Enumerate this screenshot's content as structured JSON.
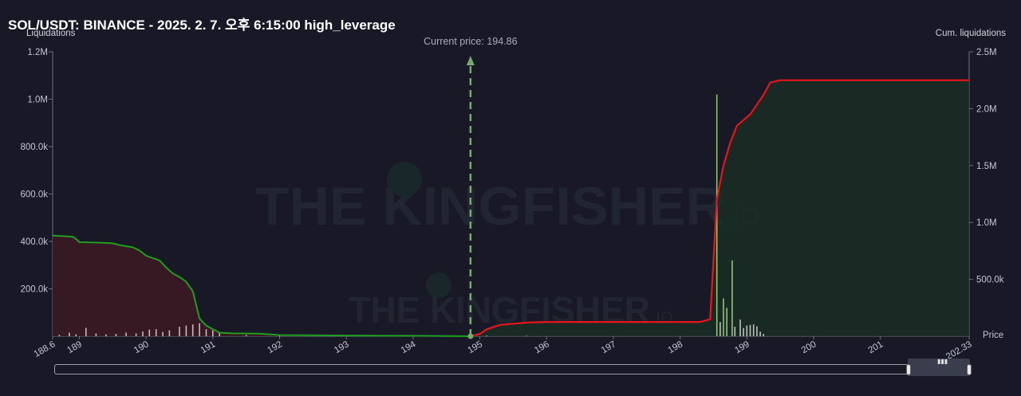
{
  "chart_data": {
    "type": "area",
    "title": "SOL/USDT: BINANCE - 2025. 2. 7. 오후 6:15:00 high_leverage",
    "ylabel_left": "Liquidations",
    "ylabel_right": "Cum. liquidations",
    "xlabel": "Price",
    "xlim": [
      188.6,
      202.33
    ],
    "ylim_left": [
      0,
      1200000
    ],
    "ylim_right": [
      0,
      2500000
    ],
    "x_ticks": [
      "188.6",
      "189",
      "190",
      "191",
      "192",
      "193",
      "194",
      "195",
      "196",
      "197",
      "198",
      "199",
      "200",
      "201",
      "202.33"
    ],
    "y_ticks_left": [
      {
        "value": 200000,
        "label": "200.0k"
      },
      {
        "value": 400000,
        "label": "400.0k"
      },
      {
        "value": 600000,
        "label": "600.0k"
      },
      {
        "value": 800000,
        "label": "800.0k"
      },
      {
        "value": 1000000,
        "label": "1.0M"
      },
      {
        "value": 1200000,
        "label": "1.2M"
      }
    ],
    "y_ticks_right": [
      {
        "value": 500000,
        "label": "500.0k"
      },
      {
        "value": 1000000,
        "label": "1.0M"
      },
      {
        "value": 1500000,
        "label": "1.5M"
      },
      {
        "value": 2000000,
        "label": "2.0M"
      },
      {
        "value": 2500000,
        "label": "2.5M"
      }
    ],
    "current_price": 194.86,
    "current_price_label": "Current price: 194.86",
    "colors": {
      "long_line": "#1f9e1f",
      "long_fill": "#3a1a22",
      "short_line": "#e8141a",
      "short_fill": "#1a3026",
      "bars": "#d9d9d9",
      "bars_highlight": "#a6e07f",
      "current_price": "#7aa86e"
    },
    "series": [
      {
        "name": "long_cum",
        "axis": "left",
        "points": [
          [
            188.6,
            425000
          ],
          [
            188.9,
            420000
          ],
          [
            188.95,
            410000
          ],
          [
            189.0,
            397000
          ],
          [
            189.3,
            395000
          ],
          [
            189.5,
            392000
          ],
          [
            189.6,
            385000
          ],
          [
            189.8,
            375000
          ],
          [
            189.9,
            362000
          ],
          [
            190.0,
            340000
          ],
          [
            190.2,
            320000
          ],
          [
            190.3,
            290000
          ],
          [
            190.4,
            265000
          ],
          [
            190.5,
            250000
          ],
          [
            190.6,
            230000
          ],
          [
            190.7,
            190000
          ],
          [
            190.8,
            75000
          ],
          [
            190.9,
            45000
          ],
          [
            191.0,
            30000
          ],
          [
            191.1,
            15000
          ],
          [
            191.3,
            12000
          ],
          [
            191.7,
            11000
          ],
          [
            192.0,
            5000
          ],
          [
            193.0,
            3000
          ],
          [
            194.0,
            2000
          ],
          [
            194.86,
            0
          ]
        ]
      },
      {
        "name": "short_cum",
        "axis": "right",
        "points": [
          [
            194.86,
            0
          ],
          [
            195.0,
            20000
          ],
          [
            195.1,
            60000
          ],
          [
            195.3,
            100000
          ],
          [
            195.5,
            110000
          ],
          [
            195.7,
            120000
          ],
          [
            196.0,
            125000
          ],
          [
            197.0,
            125000
          ],
          [
            198.0,
            125000
          ],
          [
            198.3,
            125000
          ],
          [
            198.45,
            150000
          ],
          [
            198.55,
            1200000
          ],
          [
            198.65,
            1500000
          ],
          [
            198.75,
            1700000
          ],
          [
            198.85,
            1850000
          ],
          [
            198.95,
            1900000
          ],
          [
            199.05,
            1950000
          ],
          [
            199.25,
            2120000
          ],
          [
            199.35,
            2230000
          ],
          [
            199.5,
            2250000
          ],
          [
            200.0,
            2250000
          ],
          [
            201.0,
            2250000
          ],
          [
            202.33,
            2250000
          ]
        ]
      },
      {
        "name": "liquidations",
        "axis": "left",
        "type": "bar",
        "points": [
          [
            188.7,
            6000
          ],
          [
            188.85,
            15000
          ],
          [
            188.95,
            8000
          ],
          [
            189.1,
            35000
          ],
          [
            189.25,
            12000
          ],
          [
            189.4,
            8000
          ],
          [
            189.55,
            10000
          ],
          [
            189.7,
            15000
          ],
          [
            189.85,
            12000
          ],
          [
            189.95,
            20000
          ],
          [
            190.05,
            28000
          ],
          [
            190.15,
            30000
          ],
          [
            190.25,
            18000
          ],
          [
            190.35,
            25000
          ],
          [
            190.5,
            40000
          ],
          [
            190.6,
            45000
          ],
          [
            190.7,
            50000
          ],
          [
            190.8,
            55000
          ],
          [
            190.9,
            30000
          ],
          [
            191.0,
            25000
          ],
          [
            191.1,
            15000
          ],
          [
            191.5,
            5000
          ],
          [
            192.0,
            3000
          ],
          [
            193.0,
            2000
          ],
          [
            194.0,
            2000
          ],
          [
            195.1,
            3000
          ],
          [
            195.7,
            2000
          ],
          [
            198.55,
            1020000
          ],
          [
            198.6,
            60000
          ],
          [
            198.65,
            160000
          ],
          [
            198.7,
            120000
          ],
          [
            198.78,
            320000
          ],
          [
            198.82,
            40000
          ],
          [
            198.9,
            70000
          ],
          [
            198.95,
            35000
          ],
          [
            199.0,
            45000
          ],
          [
            199.05,
            48000
          ],
          [
            199.1,
            50000
          ],
          [
            199.15,
            42000
          ],
          [
            199.2,
            20000
          ],
          [
            199.25,
            10000
          ]
        ]
      }
    ]
  }
}
